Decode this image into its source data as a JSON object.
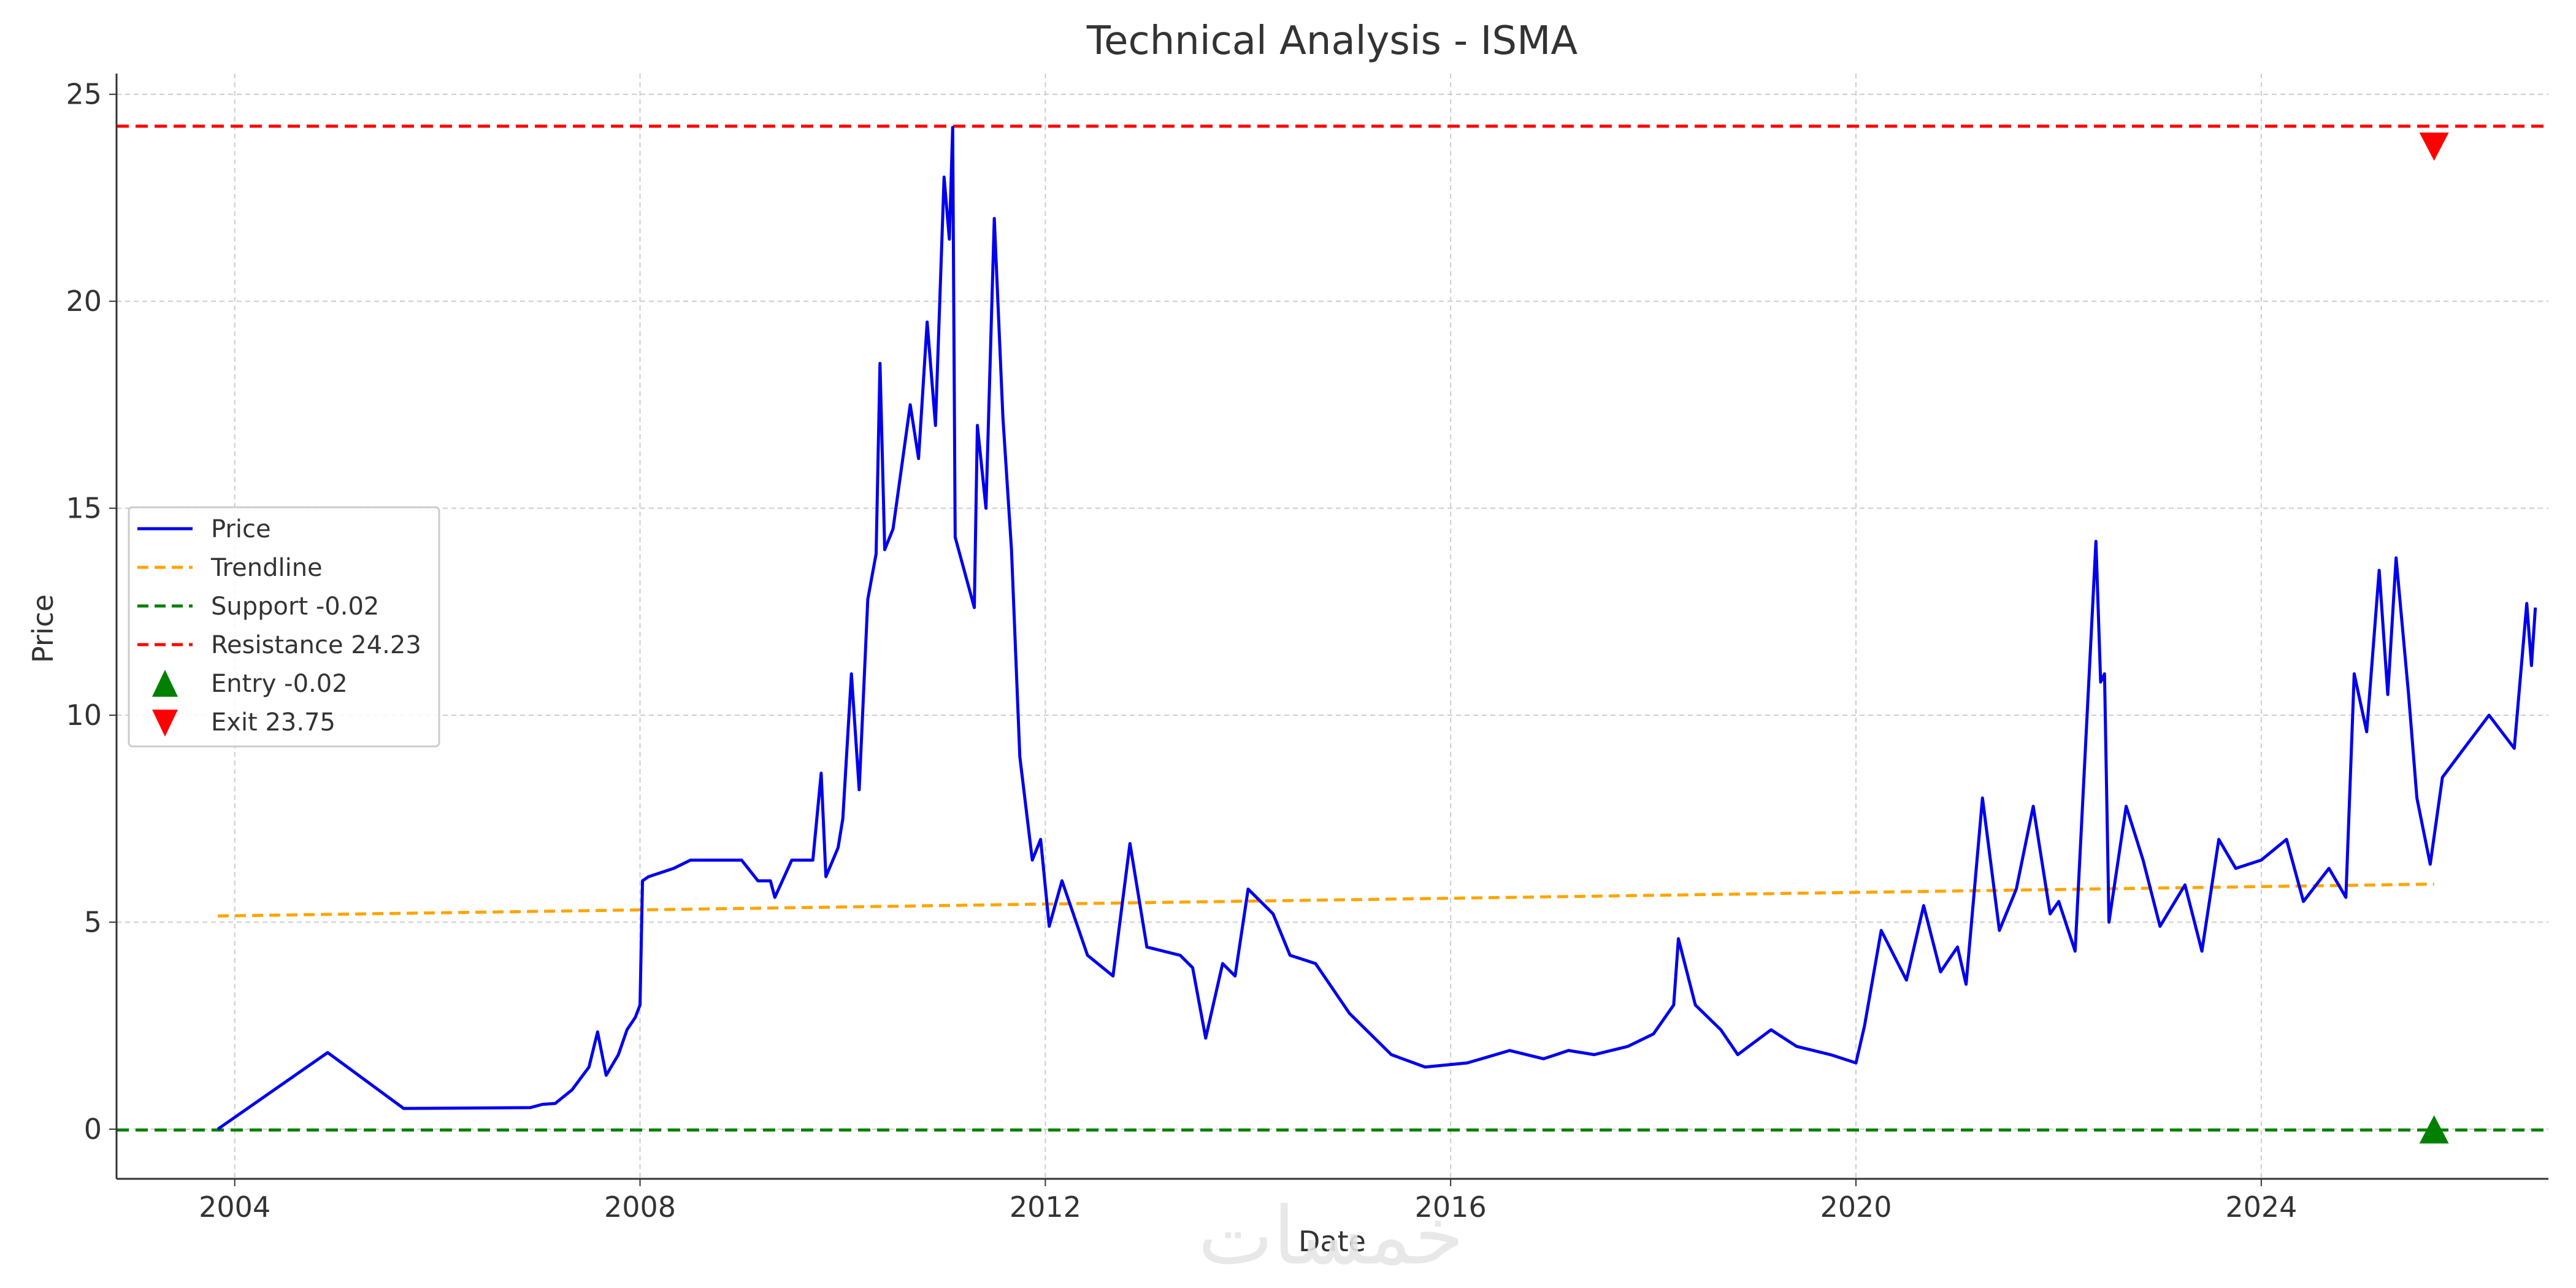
{
  "watermark_text": "خمسات",
  "chart_data": {
    "type": "line",
    "title": "Technical Analysis - ISMA",
    "xlabel": "Date",
    "ylabel": "Price",
    "xlim": [
      "2002-11-01",
      "2026-11-01"
    ],
    "ylim": [
      -1.2,
      25.5
    ],
    "x_ticks": [
      {
        "date": "2004-01-01",
        "label": "2004"
      },
      {
        "date": "2008-01-01",
        "label": "2008"
      },
      {
        "date": "2012-01-01",
        "label": "2012"
      },
      {
        "date": "2016-01-01",
        "label": "2016"
      },
      {
        "date": "2020-01-01",
        "label": "2020"
      },
      {
        "date": "2024-01-01",
        "label": "2024"
      }
    ],
    "y_ticks": [
      0,
      5,
      10,
      15,
      20,
      25
    ],
    "grid": true,
    "legend_position": "center-left",
    "colors": {
      "price": "#0000ee",
      "trendline": "#ffa500",
      "support": "#008000",
      "resistance": "#ff0000",
      "entry": "#008000",
      "exit": "#ff0000",
      "grid": "#cccccc",
      "text": "#333333"
    },
    "series": [
      {
        "name": "Price",
        "style": "solid",
        "points": [
          [
            "2003-11-01",
            0.0
          ],
          [
            "2004-12-01",
            1.85
          ],
          [
            "2005-09-01",
            0.5
          ],
          [
            "2006-12-01",
            0.52
          ],
          [
            "2007-01-15",
            0.6
          ],
          [
            "2007-03-01",
            0.62
          ],
          [
            "2007-05-01",
            0.95
          ],
          [
            "2007-07-01",
            1.5
          ],
          [
            "2007-08-01",
            2.35
          ],
          [
            "2007-09-01",
            1.3
          ],
          [
            "2007-10-15",
            1.8
          ],
          [
            "2007-11-15",
            2.4
          ],
          [
            "2007-12-15",
            2.7
          ],
          [
            "2008-01-01",
            3.0
          ],
          [
            "2008-01-10",
            6.0
          ],
          [
            "2008-02-01",
            6.1
          ],
          [
            "2008-05-01",
            6.3
          ],
          [
            "2008-07-01",
            6.5
          ],
          [
            "2009-01-01",
            6.5
          ],
          [
            "2009-03-01",
            6.0
          ],
          [
            "2009-04-15",
            6.0
          ],
          [
            "2009-05-01",
            5.6
          ],
          [
            "2009-07-01",
            6.5
          ],
          [
            "2009-09-15",
            6.5
          ],
          [
            "2009-10-15",
            8.6
          ],
          [
            "2009-11-01",
            6.1
          ],
          [
            "2009-12-15",
            6.8
          ],
          [
            "2010-01-01",
            7.5
          ],
          [
            "2010-02-01",
            11.0
          ],
          [
            "2010-03-01",
            8.2
          ],
          [
            "2010-04-01",
            12.8
          ],
          [
            "2010-05-01",
            13.9
          ],
          [
            "2010-05-15",
            18.5
          ],
          [
            "2010-06-01",
            14.0
          ],
          [
            "2010-07-01",
            14.5
          ],
          [
            "2010-08-01",
            16.0
          ],
          [
            "2010-09-01",
            17.5
          ],
          [
            "2010-10-01",
            16.2
          ],
          [
            "2010-11-01",
            19.5
          ],
          [
            "2010-12-01",
            17.0
          ],
          [
            "2011-01-01",
            23.0
          ],
          [
            "2011-01-20",
            21.5
          ],
          [
            "2011-02-01",
            24.2
          ],
          [
            "2011-02-10",
            14.3
          ],
          [
            "2011-04-20",
            12.6
          ],
          [
            "2011-05-01",
            17.0
          ],
          [
            "2011-06-01",
            15.0
          ],
          [
            "2011-07-01",
            22.0
          ],
          [
            "2011-08-01",
            17.2
          ],
          [
            "2011-09-01",
            14.0
          ],
          [
            "2011-10-01",
            9.0
          ],
          [
            "2011-11-15",
            6.5
          ],
          [
            "2011-12-15",
            7.0
          ],
          [
            "2012-01-15",
            4.9
          ],
          [
            "2012-03-01",
            6.0
          ],
          [
            "2012-06-01",
            4.2
          ],
          [
            "2012-09-01",
            3.7
          ],
          [
            "2012-11-01",
            6.9
          ],
          [
            "2013-01-01",
            4.4
          ],
          [
            "2013-05-01",
            4.2
          ],
          [
            "2013-06-15",
            3.9
          ],
          [
            "2013-08-01",
            2.2
          ],
          [
            "2013-10-01",
            4.0
          ],
          [
            "2013-11-15",
            3.7
          ],
          [
            "2014-01-01",
            5.8
          ],
          [
            "2014-04-01",
            5.2
          ],
          [
            "2014-06-01",
            4.2
          ],
          [
            "2014-09-01",
            4.0
          ],
          [
            "2015-01-01",
            2.8
          ],
          [
            "2015-06-01",
            1.8
          ],
          [
            "2015-10-01",
            1.5
          ],
          [
            "2016-03-01",
            1.6
          ],
          [
            "2016-08-01",
            1.9
          ],
          [
            "2016-12-01",
            1.7
          ],
          [
            "2017-03-01",
            1.9
          ],
          [
            "2017-06-01",
            1.8
          ],
          [
            "2017-10-01",
            2.0
          ],
          [
            "2018-01-01",
            2.3
          ],
          [
            "2018-03-15",
            3.0
          ],
          [
            "2018-04-01",
            4.6
          ],
          [
            "2018-06-01",
            3.0
          ],
          [
            "2018-09-01",
            2.4
          ],
          [
            "2018-11-01",
            1.8
          ],
          [
            "2019-03-01",
            2.4
          ],
          [
            "2019-06-01",
            2.0
          ],
          [
            "2019-10-01",
            1.8
          ],
          [
            "2020-01-01",
            1.6
          ],
          [
            "2020-02-01",
            2.5
          ],
          [
            "2020-04-01",
            4.8
          ],
          [
            "2020-07-01",
            3.6
          ],
          [
            "2020-09-01",
            5.4
          ],
          [
            "2020-11-01",
            3.8
          ],
          [
            "2021-01-01",
            4.4
          ],
          [
            "2021-02-01",
            3.5
          ],
          [
            "2021-04-01",
            8.0
          ],
          [
            "2021-06-01",
            4.8
          ],
          [
            "2021-08-01",
            5.8
          ],
          [
            "2021-10-01",
            7.8
          ],
          [
            "2021-12-01",
            5.2
          ],
          [
            "2022-01-01",
            5.5
          ],
          [
            "2022-03-01",
            4.3
          ],
          [
            "2022-05-15",
            14.2
          ],
          [
            "2022-06-01",
            10.8
          ],
          [
            "2022-06-15",
            11.0
          ],
          [
            "2022-07-01",
            5.0
          ],
          [
            "2022-09-01",
            7.8
          ],
          [
            "2022-11-01",
            6.5
          ],
          [
            "2023-01-01",
            4.9
          ],
          [
            "2023-04-01",
            5.9
          ],
          [
            "2023-06-01",
            4.3
          ],
          [
            "2023-08-01",
            7.0
          ],
          [
            "2023-10-01",
            6.3
          ],
          [
            "2024-01-01",
            6.5
          ],
          [
            "2024-04-01",
            7.0
          ],
          [
            "2024-06-01",
            5.5
          ],
          [
            "2024-09-01",
            6.3
          ],
          [
            "2024-11-01",
            5.6
          ],
          [
            "2024-12-01",
            11.0
          ],
          [
            "2025-01-15",
            9.6
          ],
          [
            "2025-03-01",
            13.5
          ],
          [
            "2025-04-01",
            10.5
          ],
          [
            "2025-05-01",
            13.8
          ],
          [
            "2025-06-15",
            10.5
          ],
          [
            "2025-07-15",
            8.0
          ],
          [
            "2025-09-01",
            6.4
          ],
          [
            "2025-10-15",
            8.5
          ],
          [
            "2026-01-01",
            9.2
          ],
          [
            "2026-04-01",
            10.0
          ],
          [
            "2026-07-01",
            9.2
          ],
          [
            "2026-08-15",
            12.7
          ],
          [
            "2026-09-01",
            11.2
          ],
          [
            "2026-09-15",
            12.6
          ]
        ]
      },
      {
        "name": "Trendline",
        "style": "dashed",
        "points": [
          [
            "2003-11-01",
            5.15
          ],
          [
            "2025-09-15",
            5.92
          ]
        ]
      }
    ],
    "support": {
      "label": "Support -0.02",
      "value": -0.02
    },
    "resistance": {
      "label": "Resistance 24.23",
      "value": 24.23
    },
    "entry": {
      "label": "Entry -0.02",
      "date": "2025-09-15",
      "value": -0.02
    },
    "exit": {
      "label": "Exit 23.75",
      "date": "2025-09-15",
      "value": 23.75
    }
  }
}
